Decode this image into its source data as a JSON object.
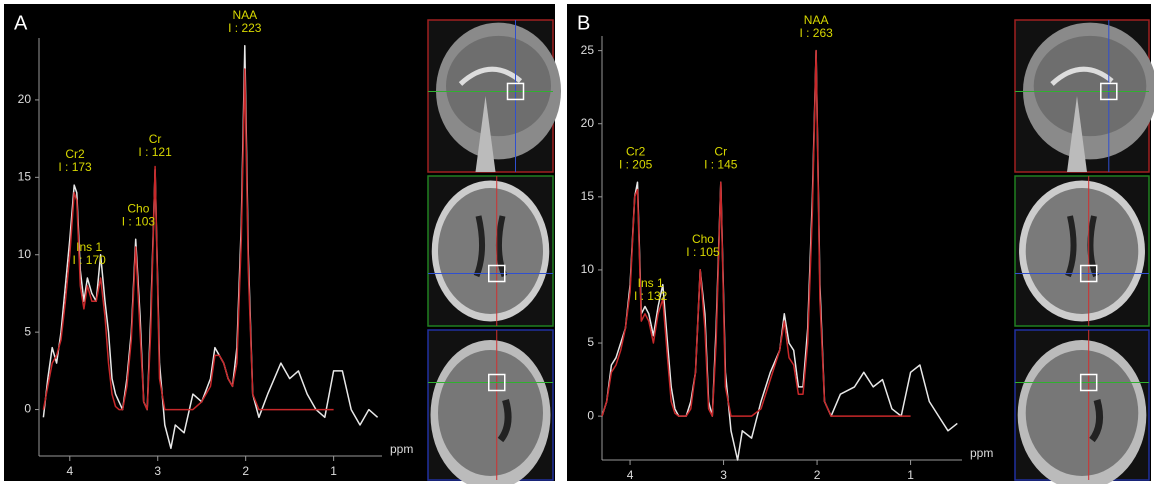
{
  "chart_data": [
    {
      "type": "line",
      "title": "A",
      "x_label": "ppm",
      "x": [
        4.3,
        4.25,
        4.2,
        4.15,
        4.1,
        4.05,
        4.0,
        3.95,
        3.92,
        3.88,
        3.84,
        3.8,
        3.75,
        3.7,
        3.65,
        3.6,
        3.56,
        3.52,
        3.48,
        3.44,
        3.4,
        3.35,
        3.3,
        3.25,
        3.2,
        3.16,
        3.12,
        3.08,
        3.03,
        2.98,
        2.92,
        2.85,
        2.8,
        2.7,
        2.6,
        2.5,
        2.4,
        2.35,
        2.3,
        2.25,
        2.2,
        2.15,
        2.1,
        2.05,
        2.01,
        1.97,
        1.92,
        1.85,
        1.75,
        1.6,
        1.5,
        1.4,
        1.3,
        1.2,
        1.1,
        1.0,
        0.9,
        0.8,
        0.7,
        0.6,
        0.5
      ],
      "series": [
        {
          "color": "#e8e8e8",
          "values": [
            -0.5,
            2,
            4,
            3,
            5,
            8,
            11,
            14.5,
            14,
            9,
            7,
            8.5,
            7.5,
            7,
            10,
            7,
            5,
            2,
            1,
            0.5,
            0,
            2,
            5,
            11,
            6,
            0.5,
            0,
            6,
            15.5,
            3,
            -1,
            -2.5,
            -1,
            -1.5,
            1,
            0.5,
            2,
            4,
            3.5,
            3,
            2,
            1.5,
            4,
            12,
            23.5,
            10,
            1,
            -0.5,
            1,
            3,
            2,
            2.5,
            1,
            0,
            -0.5,
            2.5,
            2.5,
            0,
            -1,
            0,
            -0.5
          ]
        },
        {
          "color": "#c8282a",
          "values": [
            0,
            1.5,
            3,
            3.5,
            4.5,
            7,
            10,
            14,
            13.5,
            8,
            6.5,
            8,
            7,
            7,
            8.5,
            6,
            3,
            1,
            0.2,
            0,
            0,
            1.5,
            4.5,
            10.5,
            5,
            0.5,
            0,
            5,
            15.7,
            2,
            0,
            0,
            0,
            0,
            0,
            0.5,
            1.5,
            3.5,
            3.5,
            3,
            2,
            1.5,
            3,
            11,
            22,
            9,
            1,
            0,
            0,
            0,
            0,
            0,
            0,
            0,
            0,
            0,
            null,
            null,
            null,
            null,
            null
          ]
        }
      ],
      "annotations": [
        {
          "text": [
            "Cr2",
            "I : 173"
          ],
          "x": 3.94
        },
        {
          "text": [
            "Ins 1",
            "I : 170"
          ],
          "x": 3.78
        },
        {
          "text": [
            "Cho",
            "I : 103"
          ],
          "x": 3.22
        },
        {
          "text": [
            "Cr",
            "I : 121"
          ],
          "x": 3.03
        },
        {
          "text": [
            "NAA",
            "I : 223"
          ],
          "x": 2.01
        }
      ],
      "xlim": [
        4.35,
        0.45
      ],
      "xticks": [
        4,
        3,
        2,
        1
      ],
      "ylim": [
        -3,
        24
      ],
      "yticks": [
        0,
        5,
        10,
        15,
        20
      ]
    },
    {
      "type": "line",
      "title": "B",
      "x_label": "ppm",
      "x": [
        4.3,
        4.25,
        4.2,
        4.15,
        4.1,
        4.05,
        4.0,
        3.95,
        3.92,
        3.88,
        3.84,
        3.8,
        3.75,
        3.7,
        3.65,
        3.6,
        3.56,
        3.52,
        3.48,
        3.44,
        3.4,
        3.35,
        3.3,
        3.25,
        3.2,
        3.16,
        3.12,
        3.08,
        3.03,
        2.98,
        2.92,
        2.85,
        2.8,
        2.7,
        2.6,
        2.5,
        2.4,
        2.35,
        2.3,
        2.25,
        2.2,
        2.15,
        2.1,
        2.05,
        2.01,
        1.97,
        1.92,
        1.85,
        1.75,
        1.6,
        1.5,
        1.4,
        1.3,
        1.2,
        1.1,
        1.0,
        0.9,
        0.8,
        0.7,
        0.6,
        0.5
      ],
      "series": [
        {
          "color": "#e8e8e8",
          "values": [
            0,
            1,
            3.5,
            4,
            5,
            6,
            9,
            15,
            16,
            7,
            7.5,
            7,
            5.5,
            7.5,
            9,
            5,
            2,
            0.5,
            0,
            0,
            0,
            1,
            3,
            10,
            7,
            1,
            0,
            6,
            16,
            3,
            -1,
            -3,
            -1,
            -1.5,
            1,
            3,
            4.5,
            7,
            5,
            4.5,
            2,
            2,
            6,
            15,
            25,
            9,
            1,
            0,
            1.5,
            2,
            3,
            2,
            2.5,
            0.5,
            0,
            3,
            3.5,
            1,
            0,
            -1,
            -0.5
          ]
        },
        {
          "color": "#c8282a",
          "values": [
            0,
            1,
            3,
            3.5,
            4.5,
            6,
            8.5,
            15,
            15.5,
            6.5,
            7,
            6.5,
            5,
            7,
            8,
            4,
            1,
            0.2,
            0,
            0,
            0,
            0.5,
            3,
            10,
            6,
            0.5,
            0,
            5,
            16,
            2,
            0,
            0,
            0,
            0,
            0.5,
            2.5,
            4.5,
            6.5,
            4,
            3.5,
            1.5,
            1.5,
            5,
            14,
            25,
            8,
            1,
            0,
            0,
            0,
            0,
            0,
            0,
            0,
            0,
            0,
            null,
            null,
            null,
            null,
            null
          ]
        }
      ],
      "annotations": [
        {
          "text": [
            "Cr2",
            "I : 205"
          ],
          "x": 3.94
        },
        {
          "text": [
            "Ins 1",
            "I : 132"
          ],
          "x": 3.78
        },
        {
          "text": [
            "Cho",
            "I : 105"
          ],
          "x": 3.22
        },
        {
          "text": [
            "Cr",
            "I : 145"
          ],
          "x": 3.03
        },
        {
          "text": [
            "NAA",
            "I : 263"
          ],
          "x": 2.01
        }
      ],
      "xlim": [
        4.3,
        0.45
      ],
      "xticks": [
        4,
        3,
        2,
        1
      ],
      "ylim": [
        -3,
        26
      ],
      "yticks": [
        0,
        5,
        10,
        15,
        20,
        25
      ]
    }
  ]
}
